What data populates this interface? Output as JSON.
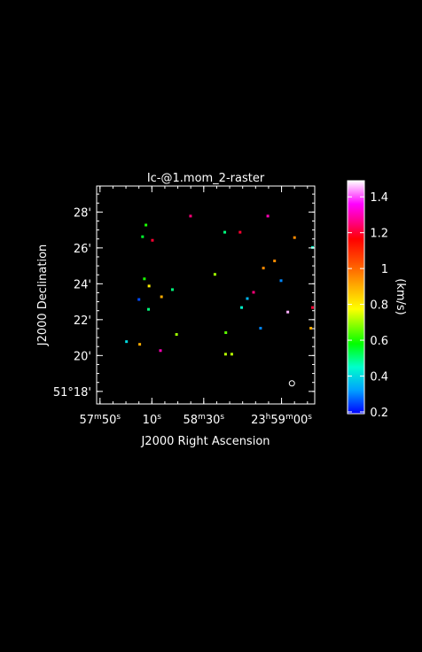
{
  "chart_data": {
    "type": "scatter",
    "title": "Ic-@1.mom_2-raster",
    "xlabel": "J2000 Right Ascension",
    "ylabel": "J2000 Declination",
    "x_ticks": [
      {
        "label_h": "23",
        "label_m": "59",
        "label_s": "00",
        "sec": -60
      },
      {
        "label_h": "",
        "label_m": "58",
        "label_s": "30",
        "sec": -30
      },
      {
        "label_h": "",
        "label_m": "",
        "label_s": "10",
        "sec": -10
      },
      {
        "label_h": "",
        "label_m": "57",
        "label_s": "50",
        "sec": 10
      }
    ],
    "y_ticks": [
      {
        "label": "51°18'",
        "arcmin": 18
      },
      {
        "label": "20'",
        "arcmin": 20
      },
      {
        "label": "22'",
        "arcmin": 22
      },
      {
        "label": "24'",
        "arcmin": 24
      },
      {
        "label": "26'",
        "arcmin": 26
      },
      {
        "label": "28'",
        "arcmin": 28
      }
    ],
    "xlim_sec": [
      -72.8,
      11.3
    ],
    "ylim_arcmin": [
      17.3,
      29.45
    ],
    "colorbar": {
      "label": "(km/s)",
      "range": [
        0.19,
        1.49
      ],
      "ticks": [
        {
          "label": "0.2",
          "value": 0.2
        },
        {
          "label": "0.4",
          "value": 0.4
        },
        {
          "label": "0.6",
          "value": 0.6
        },
        {
          "label": "0.8",
          "value": 0.8
        },
        {
          "label": "1",
          "value": 1.0
        },
        {
          "label": "1.2",
          "value": 1.2
        },
        {
          "label": "1.4",
          "value": 1.4
        }
      ]
    },
    "beam": {
      "ra_sec": -64.0,
      "dec_arcmin": 18.45
    },
    "points": [
      {
        "ra_sec": -54.2,
        "dec_arcmin": 27.8,
        "value": 1.3
      },
      {
        "ra_sec": -24.4,
        "dec_arcmin": 27.8,
        "value": 1.25
      },
      {
        "ra_sec": -7.2,
        "dec_arcmin": 27.3,
        "value": 0.6
      },
      {
        "ra_sec": -43.5,
        "dec_arcmin": 26.9,
        "value": 1.2
      },
      {
        "ra_sec": -37.6,
        "dec_arcmin": 26.9,
        "value": 0.5
      },
      {
        "ra_sec": -9.7,
        "dec_arcmin": 26.45,
        "value": 1.2
      },
      {
        "ra_sec": -5.9,
        "dec_arcmin": 26.65,
        "value": 0.55
      },
      {
        "ra_sec": -76.0,
        "dec_arcmin": 26.05,
        "value": 0.45
      },
      {
        "ra_sec": -64.5,
        "dec_arcmin": 26.6,
        "value": 0.95
      },
      {
        "ra_sec": -56.8,
        "dec_arcmin": 25.3,
        "value": 0.95
      },
      {
        "ra_sec": -52.5,
        "dec_arcmin": 24.9,
        "value": 0.95
      },
      {
        "ra_sec": -33.8,
        "dec_arcmin": 24.55,
        "value": 0.7
      },
      {
        "ra_sec": -59.3,
        "dec_arcmin": 24.2,
        "value": 0.3
      },
      {
        "ra_sec": -6.6,
        "dec_arcmin": 24.3,
        "value": 0.6
      },
      {
        "ra_sec": -8.4,
        "dec_arcmin": 23.9,
        "value": 0.8
      },
      {
        "ra_sec": -17.4,
        "dec_arcmin": 23.7,
        "value": 0.5
      },
      {
        "ra_sec": -13.2,
        "dec_arcmin": 23.3,
        "value": 0.9
      },
      {
        "ra_sec": -48.7,
        "dec_arcmin": 23.55,
        "value": 1.25
      },
      {
        "ra_sec": -46.3,
        "dec_arcmin": 23.2,
        "value": 0.35
      },
      {
        "ra_sec": -4.5,
        "dec_arcmin": 23.15,
        "value": 0.25
      },
      {
        "ra_sec": -71.5,
        "dec_arcmin": 22.7,
        "value": 1.2
      },
      {
        "ra_sec": -44.1,
        "dec_arcmin": 22.7,
        "value": 0.45
      },
      {
        "ra_sec": -8.2,
        "dec_arcmin": 22.6,
        "value": 0.5
      },
      {
        "ra_sec": -61.9,
        "dec_arcmin": 22.45,
        "value": 1.45
      },
      {
        "ra_sec": -70.8,
        "dec_arcmin": 21.55,
        "value": 0.9
      },
      {
        "ra_sec": -51.4,
        "dec_arcmin": 21.55,
        "value": 0.3
      },
      {
        "ra_sec": -38.0,
        "dec_arcmin": 21.3,
        "value": 0.65
      },
      {
        "ra_sec": -19.0,
        "dec_arcmin": 21.2,
        "value": 0.7
      },
      {
        "ra_sec": -4.8,
        "dec_arcmin": 20.65,
        "value": 0.9
      },
      {
        "ra_sec": 0.3,
        "dec_arcmin": 20.8,
        "value": 0.4
      },
      {
        "ra_sec": -12.8,
        "dec_arcmin": 20.3,
        "value": 1.3
      },
      {
        "ra_sec": -40.3,
        "dec_arcmin": 20.1,
        "value": 0.72
      },
      {
        "ra_sec": -37.9,
        "dec_arcmin": 20.1,
        "value": 0.72
      }
    ]
  }
}
